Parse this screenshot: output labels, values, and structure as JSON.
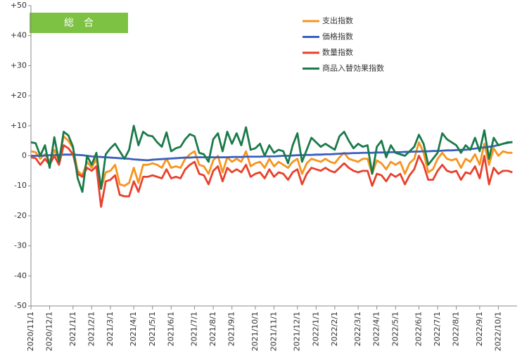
{
  "chart_data": {
    "type": "line",
    "title": "総　合",
    "categories": [
      "2020/11/1",
      null,
      null,
      null,
      "2020/12/1",
      null,
      null,
      null,
      null,
      "2021/1/1",
      null,
      null,
      null,
      "2021/2/1",
      null,
      null,
      null,
      "2021/3/1",
      null,
      null,
      null,
      null,
      "2021/4/1",
      null,
      null,
      null,
      "2021/5/1",
      null,
      null,
      null,
      "2021/6/1",
      null,
      null,
      null,
      null,
      "2021/7/1",
      null,
      null,
      null,
      "2021/8/1",
      null,
      null,
      null,
      "2021/9/1",
      null,
      null,
      null,
      null,
      "2021/10/1",
      null,
      null,
      null,
      "2021/11/1",
      null,
      null,
      null,
      null,
      "2021/12/1",
      null,
      null,
      null,
      "2022/1/1",
      null,
      null,
      null,
      "2022/2/1",
      null,
      null,
      null,
      null,
      "2022/3/1",
      null,
      null,
      null,
      "2022/4/1",
      null,
      null,
      null,
      "2022/5/1",
      null,
      null,
      null,
      null,
      "2022/6/1",
      null,
      null,
      null,
      "2022/7/1",
      null,
      null,
      null,
      "2022/8/1",
      null,
      null,
      null,
      null,
      "2022/9/1",
      null,
      null,
      null,
      "2022/10/1",
      null,
      null,
      null
    ],
    "series": [
      {
        "name": "支出指数",
        "color": "#f7941d",
        "values": [
          1.5,
          1.2,
          -1,
          0.5,
          -2,
          2,
          -1.5,
          6.5,
          5,
          2.5,
          -5,
          -6.5,
          -2,
          -4,
          -1,
          -11,
          -5.5,
          -5,
          -3,
          -9.5,
          -10,
          -9,
          -4,
          -9,
          -3,
          -3,
          -2.5,
          -3,
          -4,
          -1,
          -4,
          -3.5,
          -4,
          -1,
          0.5,
          1.5,
          -3,
          -3.5,
          -6,
          -1.5,
          0,
          -5.5,
          -0.5,
          -2,
          -1,
          -2,
          1.5,
          -3.5,
          -2.5,
          -2,
          -4,
          -1,
          -3.5,
          -2,
          -3,
          -4,
          -2,
          -1,
          -6,
          -2.5,
          -1,
          -1.5,
          -2,
          -1,
          -2,
          -2.5,
          -0.5,
          1,
          -1,
          -1.5,
          -2,
          -1,
          -1,
          -6,
          -1.5,
          -2.5,
          -4.5,
          -2,
          -3,
          -2,
          -6,
          -2.5,
          -1,
          4.5,
          1,
          -5.5,
          -4.5,
          -1,
          1,
          -1,
          -1.5,
          -1,
          -4,
          -1,
          -2,
          0.5,
          -3,
          4,
          -3,
          2.5,
          0,
          1.5,
          1,
          1
        ]
      },
      {
        "name": "価格指数",
        "color": "#3a5fbf",
        "values": [
          0,
          0,
          0,
          0.1,
          0.2,
          0.2,
          0.3,
          0.4,
          0.4,
          0.4,
          0.3,
          0.2,
          0,
          -0.2,
          -0.3,
          -0.4,
          -0.5,
          -0.6,
          -0.7,
          -0.8,
          -0.9,
          -1,
          -1.2,
          -1.3,
          -1.4,
          -1.5,
          -1.3,
          -1.2,
          -1.1,
          -1,
          -0.9,
          -0.8,
          -0.7,
          -0.6,
          -0.6,
          -0.5,
          -0.5,
          -0.5,
          -0.5,
          -0.5,
          -0.5,
          -0.5,
          -0.5,
          -0.4,
          -0.4,
          -0.4,
          -0.3,
          -0.3,
          -0.3,
          -0.3,
          -0.2,
          -0.2,
          -0.2,
          -0.1,
          0,
          0,
          0.1,
          0.2,
          0.2,
          0.3,
          0.3,
          0.4,
          0.4,
          0.5,
          0.5,
          0.6,
          0.7,
          0.8,
          0.8,
          0.9,
          0.9,
          1,
          1,
          1,
          1.1,
          1.1,
          1.1,
          1.2,
          1.2,
          1.2,
          1.3,
          1.3,
          1.4,
          1.4,
          1.5,
          1.5,
          1.6,
          1.6,
          1.7,
          1.8,
          1.8,
          1.9,
          2,
          2,
          2.2,
          2.4,
          2.6,
          2.8,
          3,
          3.2,
          3.6,
          4,
          4.3,
          4.6
        ]
      },
      {
        "name": "数量指数",
        "color": "#e8412c",
        "values": [
          -0.5,
          -0.8,
          -3,
          -1,
          -3,
          0,
          -3,
          3.5,
          2.5,
          0.5,
          -6,
          -7,
          -4,
          -5,
          -3.5,
          -17,
          -8.5,
          -8,
          -6.5,
          -13,
          -13.5,
          -13.5,
          -8.5,
          -12,
          -7,
          -7,
          -6.5,
          -7,
          -7.5,
          -4.5,
          -7.5,
          -7,
          -7.5,
          -4.5,
          -3,
          -2,
          -6,
          -6.5,
          -9.5,
          -5,
          -3.5,
          -8.5,
          -4,
          -5.5,
          -4.5,
          -5.5,
          -3,
          -7,
          -6,
          -5.5,
          -7.5,
          -4.5,
          -7,
          -5.5,
          -6,
          -8,
          -5.5,
          -4.5,
          -9.5,
          -6,
          -4,
          -4.5,
          -5,
          -4,
          -5,
          -5.5,
          -4,
          -2.5,
          -4,
          -5,
          -5.5,
          -5,
          -5,
          -10,
          -6,
          -6.5,
          -8.5,
          -6,
          -7,
          -6,
          -9.5,
          -6.5,
          -4.5,
          0,
          -3,
          -8,
          -8,
          -5,
          -3,
          -5,
          -5.5,
          -5,
          -8,
          -5.5,
          -6,
          -3.5,
          -7.5,
          0,
          -9.5,
          -4,
          -6,
          -5,
          -5,
          -5.5
        ]
      },
      {
        "name": "商品入替効果指数",
        "color": "#1a7a4a",
        "values": [
          4.5,
          4.2,
          0,
          3.5,
          -4,
          6.2,
          -2,
          8,
          6.8,
          3,
          -7.5,
          -12,
          0,
          -3,
          1,
          -11,
          0.5,
          2.5,
          4,
          1.5,
          -1,
          2,
          10,
          3.5,
          8,
          6.8,
          6.5,
          4.5,
          3,
          7.8,
          1.5,
          2.5,
          3,
          5.5,
          7.2,
          6.5,
          1,
          0.5,
          -2,
          5.5,
          7.5,
          1.5,
          8,
          4,
          7.5,
          3.5,
          9.5,
          2,
          2.5,
          4,
          0,
          3.5,
          1,
          2,
          1.5,
          -2.5,
          3.5,
          7.5,
          -2,
          2,
          6,
          4.5,
          3,
          4,
          3,
          2,
          6.5,
          8,
          5,
          2.5,
          4,
          3,
          3.5,
          -6,
          3,
          5,
          -0.5,
          3.5,
          1,
          0.5,
          0,
          1.5,
          3,
          7,
          4,
          -3,
          -1,
          1,
          7.5,
          5.5,
          4.5,
          3.5,
          1,
          3.5,
          2,
          6,
          1.5,
          8.5,
          -1,
          6,
          3.5,
          4,
          4.5,
          4.5
        ]
      }
    ],
    "ylim": [
      -50,
      50
    ],
    "yticks": [
      {
        "value": 50,
        "label": "+50"
      },
      {
        "value": 40,
        "label": "+40"
      },
      {
        "value": 30,
        "label": "+30"
      },
      {
        "value": 20,
        "label": "+20"
      },
      {
        "value": 10,
        "label": "+10"
      },
      0,
      -10,
      -20,
      -30,
      -40,
      -50
    ],
    "grid": false
  }
}
